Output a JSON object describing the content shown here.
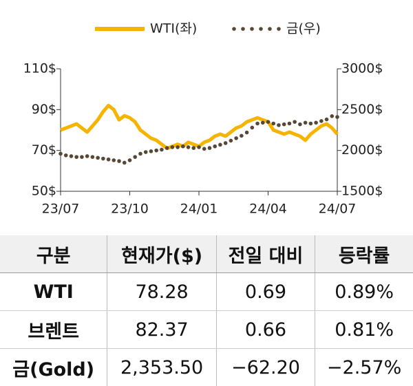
{
  "chart_data": {
    "type": "line",
    "categories": [
      "23/07",
      null,
      null,
      null,
      null,
      null,
      null,
      null,
      null,
      null,
      null,
      null,
      null,
      "23/10",
      null,
      null,
      null,
      null,
      null,
      null,
      null,
      null,
      null,
      null,
      null,
      null,
      "24/01",
      null,
      null,
      null,
      null,
      null,
      null,
      null,
      null,
      null,
      null,
      null,
      null,
      "24/04",
      null,
      null,
      null,
      null,
      null,
      null,
      null,
      null,
      null,
      null,
      null,
      null,
      "24/07"
    ],
    "series": [
      {
        "name": "WTI(좌)",
        "color": "#f5b400",
        "values": [
          80,
          81,
          82,
          83,
          81,
          79,
          82,
          85,
          89,
          92,
          90,
          85,
          87,
          86,
          84,
          80,
          78,
          76,
          75,
          73,
          71,
          72,
          73,
          72,
          74,
          73,
          72,
          74,
          75,
          77,
          78,
          77,
          79,
          81,
          82,
          84,
          85,
          86,
          85,
          84,
          80,
          79,
          78,
          79,
          78,
          77,
          75,
          78,
          80,
          82,
          83,
          81,
          78
        ]
      },
      {
        "name": "금(우)",
        "color": "#574836",
        "axis": "y2",
        "values": [
          1960,
          1940,
          1930,
          1920,
          1920,
          1930,
          1920,
          1910,
          1900,
          1890,
          1880,
          1870,
          1850,
          1880,
          1920,
          1960,
          1980,
          1990,
          2000,
          2010,
          2030,
          2040,
          2040,
          2050,
          2040,
          2030,
          2040,
          2020,
          2030,
          2050,
          2070,
          2090,
          2120,
          2150,
          2180,
          2220,
          2280,
          2330,
          2340,
          2350,
          2330,
          2310,
          2320,
          2330,
          2350,
          2320,
          2340,
          2330,
          2340,
          2360,
          2380,
          2420,
          2410
        ]
      }
    ],
    "ylim": [
      50,
      110
    ],
    "yticks": [
      {
        "value": 50,
        "label": "50$"
      },
      {
        "value": 70,
        "label": "70$"
      },
      {
        "value": 90,
        "label": "90$"
      },
      {
        "value": 110,
        "label": "110$"
      }
    ],
    "y2lim": [
      1500,
      3000
    ],
    "y2ticks": [
      {
        "value": 1500,
        "label": "1500$"
      },
      {
        "value": 2000,
        "label": "2000$"
      },
      {
        "value": 2500,
        "label": "2500$"
      },
      {
        "value": 3000,
        "label": "3000$"
      }
    ]
  },
  "table": {
    "header": [
      "구분",
      "현재가($)",
      "전일 대비",
      "등락률"
    ],
    "rows": [
      [
        "WTI",
        "78.28",
        "0.69",
        "0.89%"
      ],
      [
        "브렌트",
        "82.37",
        "0.66",
        "0.81%"
      ],
      [
        "금(Gold)",
        "2,353.50",
        "−62.20",
        "−2.57%"
      ]
    ]
  }
}
